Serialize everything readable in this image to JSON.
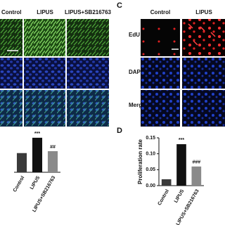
{
  "panel_b": {
    "columns": [
      "Control",
      "LIPUS",
      "LIPUS+SB216763"
    ]
  },
  "panel_c": {
    "label": "C",
    "columns": [
      "Control",
      "LIPUS"
    ],
    "rows": [
      "EdU",
      "DAPI",
      "Merge"
    ]
  },
  "chart_b": {
    "type": "bar",
    "categories": [
      "Control",
      "LIPUS",
      "LIPUS+SB216763"
    ],
    "values": [
      1,
      1.8,
      1.1
    ],
    "ylim": [
      0,
      2.2
    ],
    "colors": [
      "#3a3a3a",
      "#111111",
      "#8a8a8a"
    ],
    "annotations": [
      null,
      "***",
      "##"
    ]
  },
  "chart_d": {
    "type": "bar",
    "label": "D",
    "ylabel": "Proliferation rate",
    "categories": [
      "Control",
      "LIPUS",
      "LIPUS+SB216763"
    ],
    "values": [
      0.02,
      0.13,
      0.06
    ],
    "ylim": [
      0,
      0.15
    ],
    "yticks": [
      {
        "value": 0,
        "label": "0.00"
      },
      {
        "value": 0.05,
        "label": "0.05"
      },
      {
        "value": 0.1,
        "label": "0.10"
      },
      {
        "value": 0.15,
        "label": "0.15"
      }
    ],
    "colors": [
      "#3a3a3a",
      "#111111",
      "#8a8a8a"
    ],
    "annotations": [
      null,
      "***",
      "###"
    ]
  }
}
